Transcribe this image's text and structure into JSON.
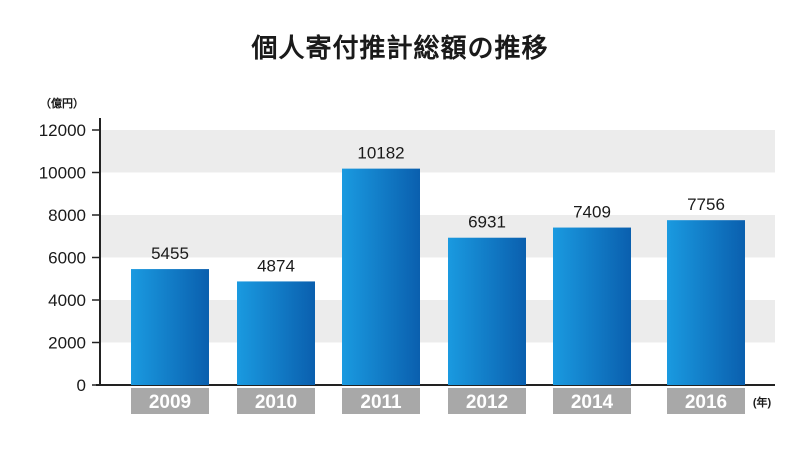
{
  "chart_data": {
    "type": "bar",
    "title": "個人寄付推計総額の推移",
    "ylabel": "（億円）",
    "xlabel": "(年)",
    "categories": [
      "2009",
      "2010",
      "2011",
      "2012",
      "2014",
      "2016"
    ],
    "values": [
      5455,
      4874,
      10182,
      6931,
      7409,
      7756
    ],
    "ylim": [
      0,
      12000
    ],
    "yticks": [
      0,
      2000,
      4000,
      6000,
      8000,
      10000,
      12000
    ],
    "grid": "alternating horizontal bands",
    "legend": "none",
    "colors": {
      "bar_dark": "#0a5fae",
      "bar_light": "#1a9ae0",
      "band": "#ececec",
      "category_label_bg": "#a8a8a8",
      "category_label_text": "#ffffff"
    }
  }
}
